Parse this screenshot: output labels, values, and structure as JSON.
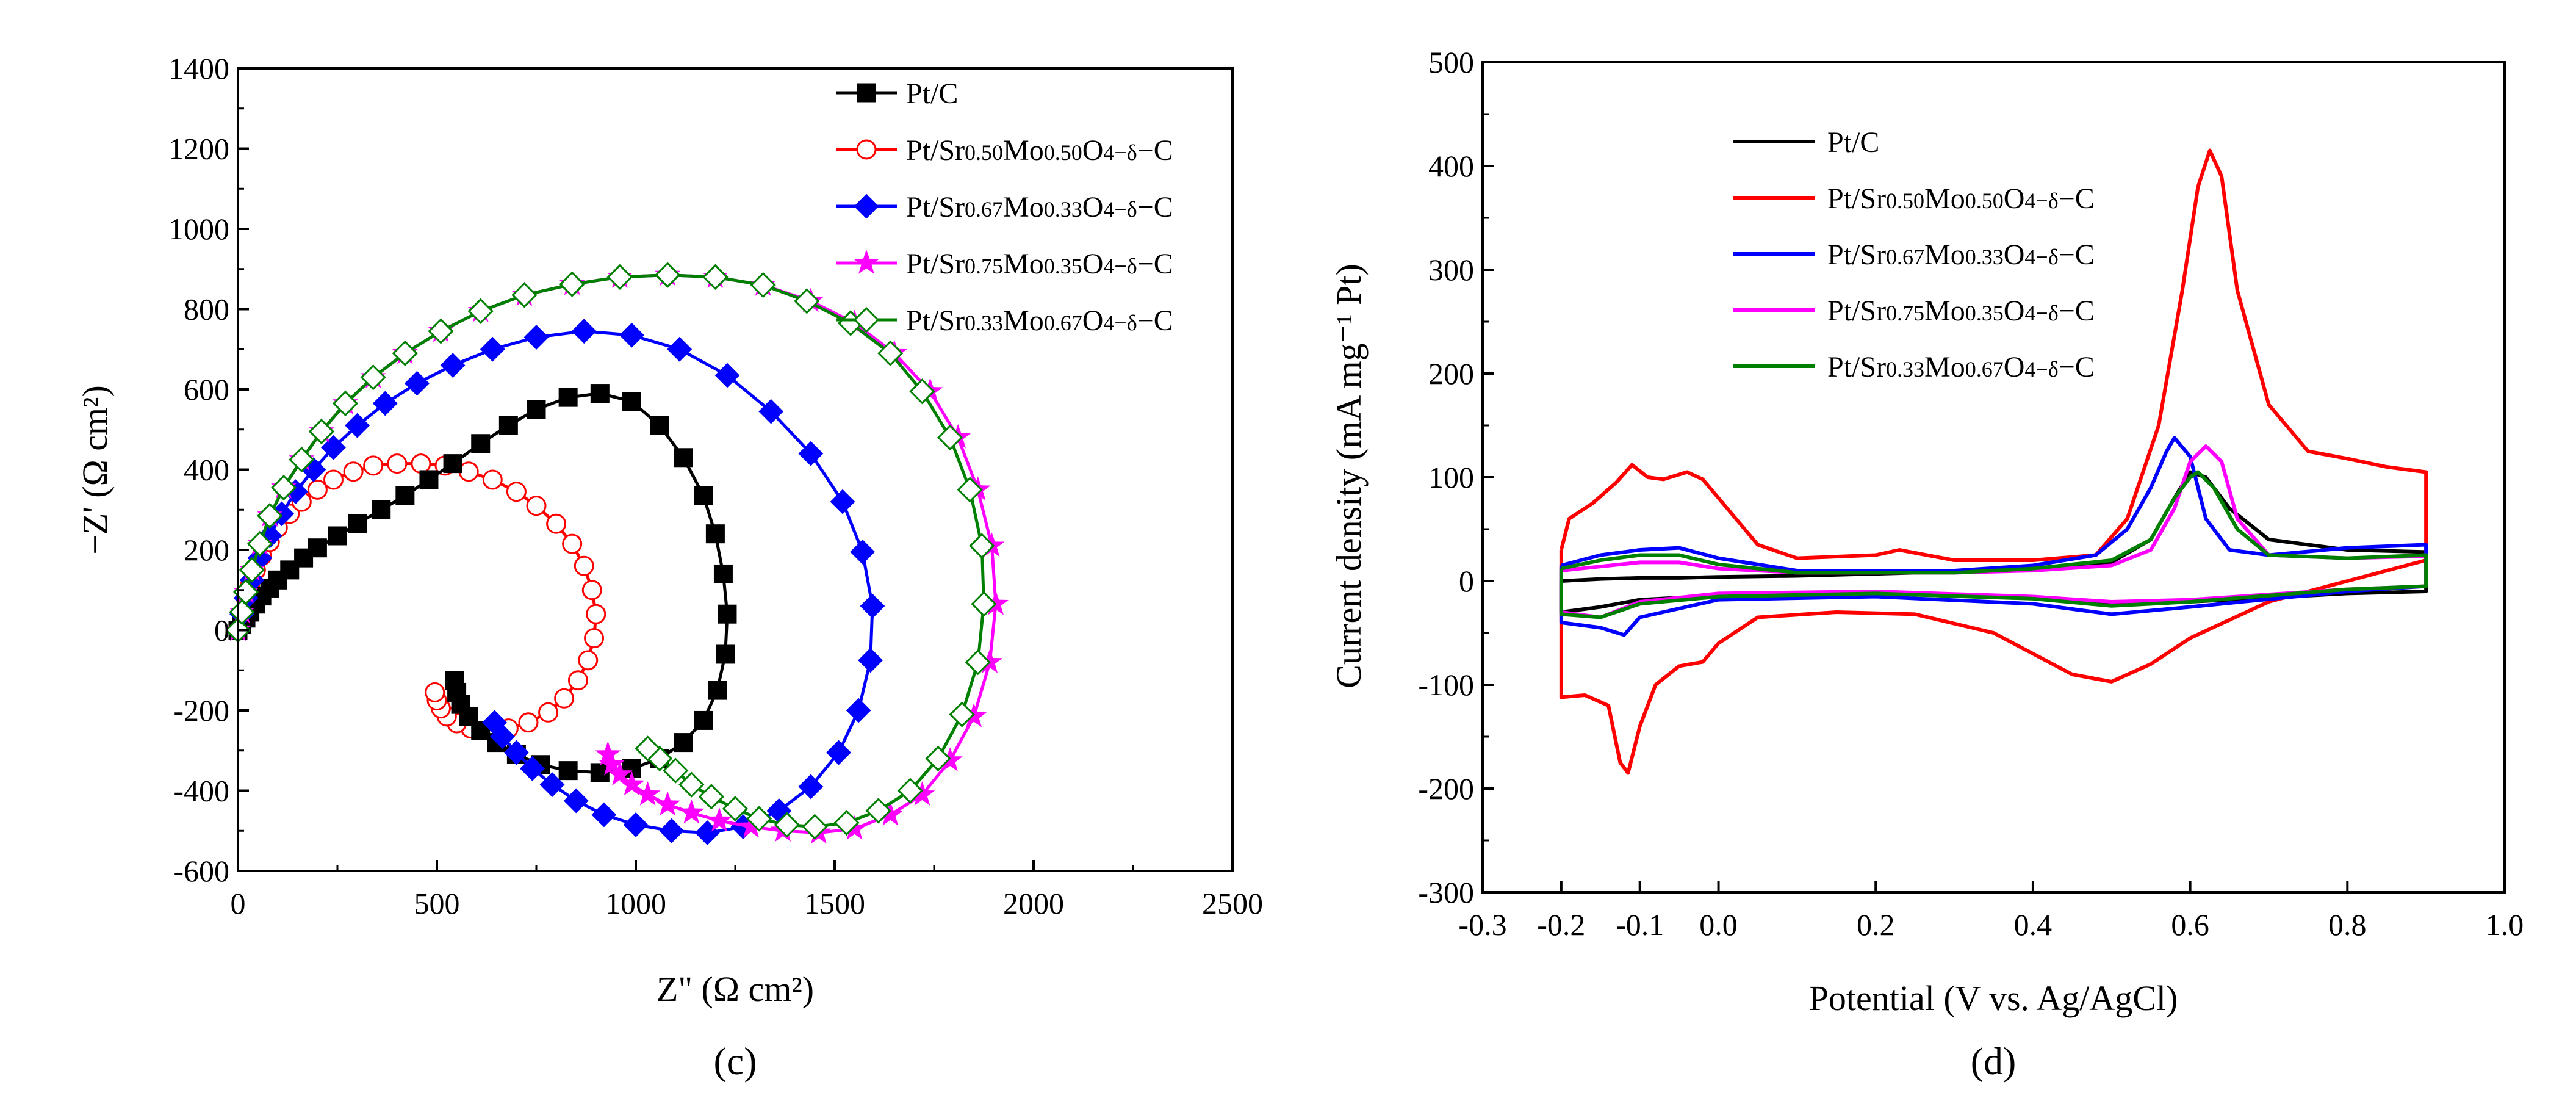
{
  "chart_data": [
    {
      "type": "line",
      "panel_label": "(c)",
      "xlabel": "Z\" (Ω cm²)",
      "ylabel": "−Z' (Ω cm²)",
      "xlim": [
        0,
        2500
      ],
      "ylim": [
        -600,
        1400
      ],
      "xticks": [
        0,
        500,
        1000,
        1500,
        2000,
        2500
      ],
      "yticks": [
        -600,
        -400,
        -200,
        0,
        200,
        400,
        600,
        800,
        1000,
        1200,
        1400
      ],
      "legend_position": "top-right",
      "series": [
        {
          "name": "Pt/Sr0.50Mo0.50O4−δ−C",
          "label_parts": [
            "Pt/Sr",
            "0.50",
            "Mo",
            "0.50",
            "O",
            "4−δ",
            "−C"
          ],
          "color": "#ff0000",
          "marker": "circle-open",
          "x": [
            0,
            10,
            20,
            30,
            45,
            60,
            80,
            100,
            130,
            160,
            200,
            240,
            290,
            340,
            400,
            460,
            520,
            580,
            640,
            700,
            750,
            800,
            840,
            870,
            890,
            900,
            895,
            880,
            855,
            820,
            780,
            730,
            680,
            630,
            585,
            550,
            525,
            510,
            500,
            495
          ],
          "y": [
            0,
            40,
            80,
            110,
            150,
            185,
            220,
            255,
            290,
            320,
            350,
            375,
            395,
            410,
            415,
            415,
            410,
            395,
            375,
            345,
            310,
            265,
            215,
            160,
            100,
            40,
            -20,
            -75,
            -125,
            -170,
            -205,
            -230,
            -245,
            -250,
            -245,
            -232,
            -215,
            -195,
            -175,
            -155
          ]
        },
        {
          "name": "Pt/C",
          "label_parts": [
            "Pt/C"
          ],
          "color": "#000000",
          "marker": "square-filled",
          "x": [
            0,
            10,
            20,
            30,
            45,
            60,
            80,
            100,
            130,
            165,
            200,
            250,
            300,
            360,
            420,
            480,
            540,
            610,
            680,
            750,
            830,
            910,
            990,
            1060,
            1120,
            1170,
            1200,
            1220,
            1230,
            1225,
            1205,
            1170,
            1120,
            1060,
            990,
            910,
            830,
            760,
            700,
            650,
            610,
            580,
            560,
            550,
            545
          ],
          "y": [
            0,
            15,
            30,
            45,
            65,
            85,
            105,
            125,
            150,
            180,
            205,
            235,
            265,
            300,
            335,
            375,
            415,
            465,
            510,
            550,
            580,
            590,
            570,
            510,
            430,
            335,
            240,
            140,
            40,
            -60,
            -150,
            -225,
            -280,
            -320,
            -345,
            -355,
            -350,
            -335,
            -310,
            -280,
            -250,
            -215,
            -185,
            -155,
            -125
          ]
        },
        {
          "name": "Pt/Sr0.67Mo0.33O4−δ−C",
          "label_parts": [
            "Pt/Sr",
            "0.67",
            "Mo",
            "0.33",
            "O",
            "4−δ",
            "−C"
          ],
          "color": "#0000ff",
          "marker": "diamond-filled",
          "x": [
            0,
            10,
            20,
            35,
            55,
            80,
            110,
            145,
            190,
            240,
            300,
            370,
            450,
            540,
            640,
            750,
            870,
            990,
            1110,
            1230,
            1340,
            1440,
            1520,
            1570,
            1595,
            1590,
            1560,
            1510,
            1440,
            1360,
            1270,
            1180,
            1090,
            1000,
            920,
            850,
            790,
            740,
            700,
            665,
            645
          ],
          "y": [
            0,
            40,
            80,
            125,
            180,
            235,
            290,
            345,
            400,
            455,
            510,
            565,
            615,
            660,
            700,
            730,
            745,
            735,
            700,
            635,
            545,
            440,
            320,
            195,
            60,
            -75,
            -200,
            -305,
            -390,
            -450,
            -490,
            -505,
            -500,
            -485,
            -460,
            -425,
            -385,
            -345,
            -305,
            -265,
            -230
          ]
        },
        {
          "name": "Pt/Sr0.75Mo0.35O4−δ−C",
          "label_parts": [
            "Pt/Sr",
            "0.75",
            "Mo",
            "0.35",
            "O",
            "4−δ",
            "−C"
          ],
          "color": "#ff00ff",
          "marker": "star-filled",
          "x": [
            0,
            10,
            20,
            35,
            55,
            80,
            115,
            160,
            210,
            270,
            340,
            420,
            510,
            610,
            720,
            840,
            960,
            1080,
            1200,
            1320,
            1440,
            1550,
            1650,
            1740,
            1810,
            1860,
            1895,
            1905,
            1890,
            1850,
            1790,
            1720,
            1640,
            1550,
            1460,
            1370,
            1290,
            1210,
            1140,
            1080,
            1030,
            990,
            960,
            940,
            930
          ],
          "y": [
            0,
            45,
            95,
            150,
            215,
            285,
            355,
            425,
            495,
            565,
            630,
            690,
            745,
            795,
            835,
            862,
            880,
            885,
            880,
            860,
            820,
            765,
            690,
            595,
            480,
            350,
            210,
            65,
            -80,
            -215,
            -325,
            -410,
            -460,
            -495,
            -505,
            -500,
            -490,
            -475,
            -455,
            -435,
            -410,
            -385,
            -360,
            -335,
            -310
          ]
        },
        {
          "name": "Pt/Sr0.33Mo0.67O4−δ−C",
          "label_parts": [
            "Pt/Sr",
            "0.33",
            "Mo",
            "0.67",
            "O",
            "4−δ",
            "−C"
          ],
          "color": "#008000",
          "marker": "diamond-open",
          "x": [
            0,
            10,
            20,
            35,
            55,
            80,
            115,
            160,
            210,
            270,
            340,
            420,
            510,
            610,
            720,
            840,
            960,
            1080,
            1200,
            1320,
            1430,
            1540,
            1640,
            1720,
            1790,
            1840,
            1870,
            1875,
            1860,
            1820,
            1760,
            1690,
            1610,
            1530,
            1450,
            1380,
            1310,
            1250,
            1190,
            1140,
            1100,
            1060,
            1030
          ],
          "y": [
            0,
            45,
            95,
            150,
            215,
            285,
            355,
            425,
            495,
            565,
            630,
            690,
            745,
            795,
            835,
            862,
            880,
            885,
            880,
            860,
            820,
            765,
            690,
            595,
            480,
            350,
            210,
            65,
            -80,
            -210,
            -320,
            -400,
            -450,
            -480,
            -490,
            -485,
            -470,
            -445,
            -415,
            -385,
            -350,
            -320,
            -295
          ]
        }
      ]
    },
    {
      "type": "line",
      "panel_label": "(d)",
      "xlabel": "Potential (V vs. Ag/AgCl)",
      "ylabel": "Current density (mA mg⁻¹ Pt)",
      "xlim": [
        -0.3,
        1.0
      ],
      "ylim": [
        -300,
        500
      ],
      "xticks": [
        -0.3,
        -0.2,
        -0.1,
        0.0,
        0.2,
        0.4,
        0.6,
        0.8,
        1.0
      ],
      "xtick_labels": [
        "-0.3",
        "-0.2",
        "-0.1",
        "0.0",
        "0.2",
        "0.4",
        "0.6",
        "0.8",
        "1.0"
      ],
      "yticks": [
        -300,
        -200,
        -100,
        0,
        100,
        200,
        300,
        400,
        500
      ],
      "legend_position": "top-left",
      "series": [
        {
          "name": "Pt/C",
          "label_parts": [
            "Pt/C"
          ],
          "color": "#000000",
          "x": [
            -0.2,
            -0.15,
            -0.1,
            -0.05,
            0.0,
            0.1,
            0.2,
            0.3,
            0.4,
            0.5,
            0.55,
            0.58,
            0.6,
            0.62,
            0.65,
            0.7,
            0.8,
            0.9,
            0.9,
            0.8,
            0.6,
            0.5,
            0.4,
            0.2,
            0.0,
            -0.1,
            -0.15,
            -0.2,
            -0.2
          ],
          "y": [
            0,
            2,
            3,
            3,
            4,
            5,
            7,
            9,
            12,
            18,
            40,
            80,
            105,
            100,
            70,
            40,
            30,
            28,
            -10,
            -12,
            -20,
            -22,
            -16,
            -12,
            -14,
            -18,
            -25,
            -30,
            0
          ]
        },
        {
          "name": "Pt/Sr0.50Mo0.50O4−δ−C",
          "label_parts": [
            "Pt/Sr",
            "0.50",
            "Mo",
            "0.50",
            "O",
            "4−δ",
            "−C"
          ],
          "color": "#ff0000",
          "x": [
            -0.2,
            -0.19,
            -0.16,
            -0.13,
            -0.11,
            -0.09,
            -0.07,
            -0.04,
            -0.02,
            0.0,
            0.05,
            0.1,
            0.2,
            0.23,
            0.3,
            0.4,
            0.48,
            0.52,
            0.56,
            0.59,
            0.61,
            0.625,
            0.64,
            0.66,
            0.7,
            0.75,
            0.8,
            0.85,
            0.9,
            0.9,
            0.85,
            0.8,
            0.7,
            0.6,
            0.55,
            0.5,
            0.45,
            0.35,
            0.25,
            0.15,
            0.05,
            0.0,
            -0.02,
            -0.05,
            -0.08,
            -0.1,
            -0.115,
            -0.125,
            -0.14,
            -0.17,
            -0.2,
            -0.2
          ],
          "y": [
            30,
            60,
            75,
            95,
            112,
            100,
            98,
            105,
            98,
            80,
            35,
            22,
            25,
            30,
            20,
            20,
            25,
            60,
            150,
            280,
            380,
            415,
            390,
            280,
            170,
            125,
            118,
            110,
            105,
            20,
            10,
            0,
            -20,
            -55,
            -80,
            -97,
            -90,
            -50,
            -32,
            -30,
            -35,
            -60,
            -78,
            -82,
            -100,
            -140,
            -185,
            -175,
            -120,
            -110,
            -112,
            30
          ]
        },
        {
          "name": "Pt/Sr0.67Mo0.33O4−δ−C",
          "label_parts": [
            "Pt/Sr",
            "0.67",
            "Mo",
            "0.33",
            "O",
            "4−δ",
            "−C"
          ],
          "color": "#0000ff",
          "x": [
            -0.2,
            -0.15,
            -0.1,
            -0.05,
            0.0,
            0.1,
            0.2,
            0.3,
            0.4,
            0.48,
            0.52,
            0.55,
            0.57,
            0.58,
            0.6,
            0.62,
            0.65,
            0.7,
            0.8,
            0.9,
            0.9,
            0.8,
            0.6,
            0.5,
            0.4,
            0.2,
            0.0,
            -0.1,
            -0.12,
            -0.15,
            -0.2,
            -0.2
          ],
          "y": [
            15,
            25,
            30,
            32,
            22,
            10,
            10,
            10,
            15,
            25,
            50,
            90,
            125,
            138,
            120,
            60,
            30,
            25,
            32,
            35,
            -5,
            -10,
            -25,
            -32,
            -22,
            -15,
            -18,
            -35,
            -52,
            -45,
            -40,
            15
          ]
        },
        {
          "name": "Pt/Sr0.75Mo0.35O4−δ−C",
          "label_parts": [
            "Pt/Sr",
            "0.75",
            "Mo",
            "0.35",
            "O",
            "4−δ",
            "−C"
          ],
          "color": "#ff00ff",
          "x": [
            -0.2,
            -0.15,
            -0.1,
            -0.05,
            0.0,
            0.1,
            0.2,
            0.3,
            0.4,
            0.5,
            0.55,
            0.58,
            0.6,
            0.62,
            0.64,
            0.66,
            0.7,
            0.8,
            0.9,
            0.9,
            0.8,
            0.6,
            0.5,
            0.4,
            0.2,
            0.0,
            -0.1,
            -0.15,
            -0.2,
            -0.2
          ],
          "y": [
            10,
            14,
            18,
            18,
            12,
            8,
            8,
            8,
            10,
            15,
            30,
            70,
            115,
            130,
            115,
            60,
            25,
            22,
            24,
            -5,
            -8,
            -18,
            -20,
            -15,
            -10,
            -12,
            -20,
            -35,
            -30,
            10
          ]
        },
        {
          "name": "Pt/Sr0.33Mo0.67O4−δ−C",
          "label_parts": [
            "Pt/Sr",
            "0.33",
            "Mo",
            "0.67",
            "O",
            "4−δ",
            "−C"
          ],
          "color": "#008000",
          "x": [
            -0.2,
            -0.15,
            -0.1,
            -0.05,
            0.0,
            0.1,
            0.2,
            0.3,
            0.4,
            0.5,
            0.55,
            0.58,
            0.6,
            0.61,
            0.63,
            0.66,
            0.7,
            0.8,
            0.9,
            0.9,
            0.8,
            0.6,
            0.5,
            0.4,
            0.2,
            0.0,
            -0.1,
            -0.15,
            -0.2,
            -0.2
          ],
          "y": [
            12,
            20,
            25,
            25,
            16,
            8,
            8,
            8,
            12,
            20,
            40,
            80,
            100,
            105,
            90,
            50,
            25,
            22,
            25,
            -5,
            -8,
            -20,
            -24,
            -17,
            -12,
            -15,
            -22,
            -35,
            -32,
            12
          ]
        }
      ]
    }
  ]
}
